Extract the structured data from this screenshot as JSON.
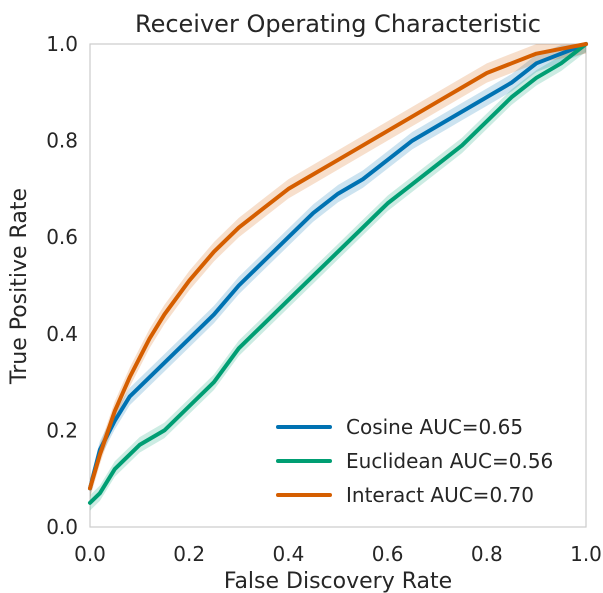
{
  "chart_data": {
    "type": "line",
    "title": "Receiver Operating Characteristic",
    "xlabel": "False Discovery Rate",
    "ylabel": "True Positive Rate",
    "xlim": [
      0.0,
      1.0
    ],
    "ylim": [
      0.0,
      1.0
    ],
    "xticks": [
      "0.0",
      "0.2",
      "0.4",
      "0.6",
      "0.8",
      "1.0"
    ],
    "yticks": [
      "0.0",
      "0.2",
      "0.4",
      "0.6",
      "0.8",
      "1.0"
    ],
    "grid": false,
    "legend_position": "lower-right",
    "series": [
      {
        "name": "Cosine AUC=0.65",
        "color": "#0072B2",
        "band_halfwidth": 0.018,
        "x": [
          0.0,
          0.02,
          0.05,
          0.08,
          0.1,
          0.15,
          0.2,
          0.25,
          0.3,
          0.35,
          0.4,
          0.45,
          0.5,
          0.55,
          0.6,
          0.65,
          0.7,
          0.75,
          0.8,
          0.85,
          0.9,
          0.95,
          1.0
        ],
        "y": [
          0.08,
          0.16,
          0.22,
          0.27,
          0.29,
          0.34,
          0.39,
          0.44,
          0.5,
          0.55,
          0.6,
          0.65,
          0.69,
          0.72,
          0.76,
          0.8,
          0.83,
          0.86,
          0.89,
          0.92,
          0.96,
          0.98,
          1.0
        ]
      },
      {
        "name": "Euclidean AUC=0.56",
        "color": "#009E73",
        "band_halfwidth": 0.016,
        "x": [
          0.0,
          0.02,
          0.05,
          0.08,
          0.1,
          0.15,
          0.2,
          0.25,
          0.3,
          0.35,
          0.4,
          0.45,
          0.5,
          0.55,
          0.6,
          0.65,
          0.7,
          0.75,
          0.8,
          0.85,
          0.9,
          0.95,
          1.0
        ],
        "y": [
          0.05,
          0.07,
          0.12,
          0.15,
          0.17,
          0.2,
          0.25,
          0.3,
          0.37,
          0.42,
          0.47,
          0.52,
          0.57,
          0.62,
          0.67,
          0.71,
          0.75,
          0.79,
          0.84,
          0.89,
          0.93,
          0.96,
          1.0
        ]
      },
      {
        "name": "Interact AUC=0.70",
        "color": "#D55E00",
        "band_halfwidth": 0.02,
        "x": [
          0.0,
          0.02,
          0.05,
          0.08,
          0.1,
          0.12,
          0.15,
          0.2,
          0.25,
          0.3,
          0.35,
          0.4,
          0.45,
          0.5,
          0.55,
          0.6,
          0.65,
          0.7,
          0.75,
          0.8,
          0.85,
          0.9,
          0.95,
          1.0
        ],
        "y": [
          0.08,
          0.15,
          0.24,
          0.31,
          0.35,
          0.39,
          0.44,
          0.51,
          0.57,
          0.62,
          0.66,
          0.7,
          0.73,
          0.76,
          0.79,
          0.82,
          0.85,
          0.88,
          0.91,
          0.94,
          0.96,
          0.98,
          0.99,
          1.0
        ]
      }
    ]
  }
}
